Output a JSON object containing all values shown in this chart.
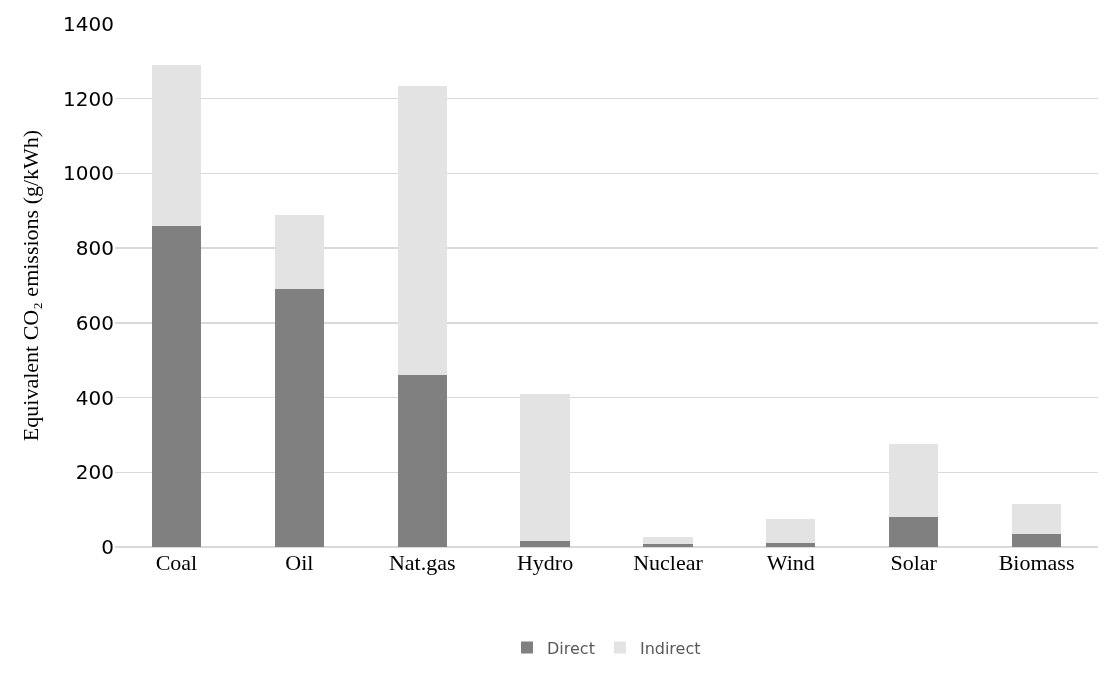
{
  "chart_data": {
    "type": "bar",
    "stacked": true,
    "ylabel": "Equivalent CO₂ emissions (g/kWh)",
    "categories": [
      "Coal",
      "Oil",
      "Nat.gas",
      "Hydro",
      "Nuclear",
      "Wind",
      "Solar",
      "Biomass"
    ],
    "series": [
      {
        "name": "Direct",
        "color": "#808080",
        "values": [
          860,
          690,
          460,
          15,
          7,
          10,
          80,
          35
        ]
      },
      {
        "name": "Indirect",
        "color": "#e4e3e4",
        "values": [
          430,
          200,
          775,
          395,
          20,
          65,
          195,
          80
        ]
      }
    ],
    "ylim": [
      0,
      1400
    ],
    "yticks": [
      0,
      200,
      400,
      600,
      800,
      1000,
      1200,
      1400
    ],
    "grid": "y",
    "legend": "bottom"
  }
}
